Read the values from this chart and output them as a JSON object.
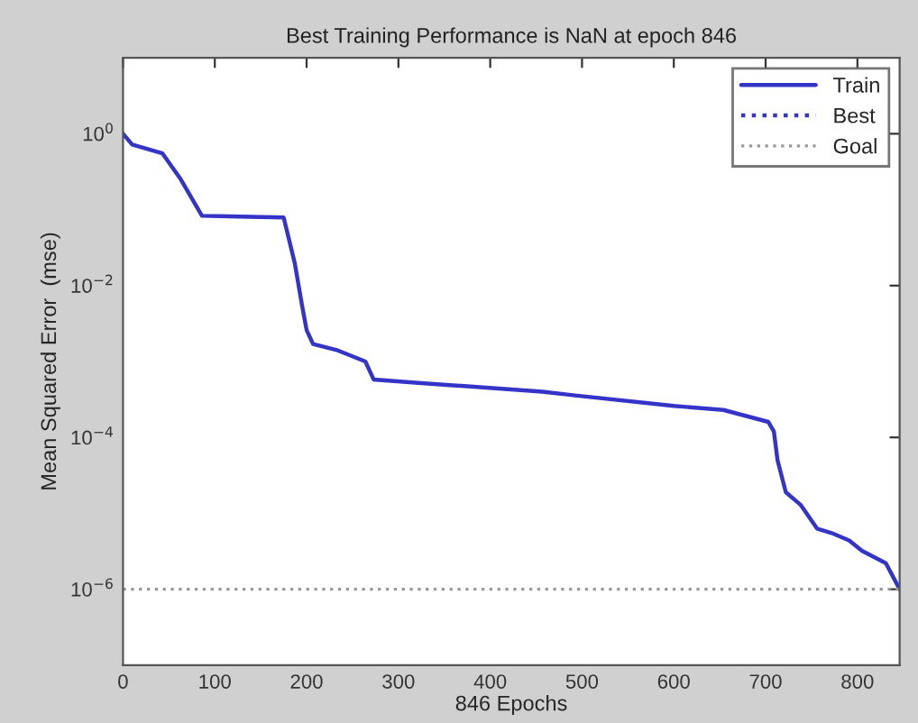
{
  "chart_data": {
    "type": "line",
    "title": "Best Training Performance is NaN at epoch 846",
    "xlabel": "846 Epochs",
    "ylabel": "Mean Squared Error  (mse)",
    "log": "y",
    "xlim": [
      0,
      846
    ],
    "xticks": [
      0,
      100,
      200,
      300,
      400,
      500,
      600,
      700,
      800
    ],
    "ylim": [
      1e-07,
      10
    ],
    "yticks": [
      {
        "value": 1,
        "label": "10$^{0}$"
      },
      {
        "value": 0.01,
        "label": "10$^{−2}$"
      },
      {
        "value": 0.0001,
        "label": "10$^{−4}$"
      },
      {
        "value": 1e-06,
        "label": "10$^{−6}$"
      }
    ],
    "grid": false,
    "legend": "top right",
    "series": [
      {
        "name": "Train",
        "color": "#3434c8",
        "line_style": "solid",
        "x": [
          0,
          10,
          43,
          63,
          86,
          175,
          187,
          195,
          200,
          207,
          234,
          264,
          273,
          325,
          457,
          490,
          600,
          654,
          703,
          709,
          713,
          722,
          738,
          756,
          772,
          791,
          805,
          831,
          846
        ],
        "values": [
          1,
          0.72,
          0.55,
          0.25,
          0.083,
          0.079,
          0.02,
          0.0055,
          0.0026,
          0.0017,
          0.0014,
          0.001,
          0.00058,
          0.00052,
          0.0004,
          0.00036,
          0.00026,
          0.00023,
          0.00016,
          0.00012,
          5e-05,
          1.9e-05,
          1.3e-05,
          6.3e-06,
          5.5e-06,
          4.4e-06,
          3.2e-06,
          2.2e-06,
          1e-06
        ]
      },
      {
        "name": "Best",
        "color": "#3434c8",
        "line_style": "dotted"
      }
    ],
    "ref_lines": [
      {
        "axis": "y",
        "value": 1e-06,
        "label": "Goal",
        "color": "#9a9a9a",
        "line_style": "dotted"
      }
    ]
  }
}
